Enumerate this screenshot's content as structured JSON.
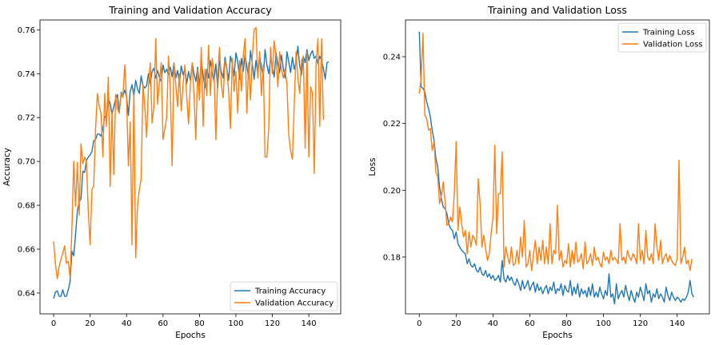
{
  "chart_data": [
    {
      "type": "line",
      "title": "Training and Validation Accuracy",
      "xlabel": "Epochs",
      "ylabel": "Accuracy",
      "xlim": [
        -7.5,
        157.5
      ],
      "ylim": [
        0.6305,
        0.7645
      ],
      "xticks": [
        0,
        20,
        40,
        60,
        80,
        100,
        120,
        140
      ],
      "xtick_labels": [
        "0",
        "20",
        "40",
        "60",
        "80",
        "100",
        "120",
        "140"
      ],
      "yticks": [
        0.64,
        0.66,
        0.68,
        0.7,
        0.72,
        0.74,
        0.76
      ],
      "ytick_labels": [
        "0.64",
        "0.66",
        "0.68",
        "0.70",
        "0.72",
        "0.74",
        "0.76"
      ],
      "legend_position": "lower-right",
      "grid": false,
      "series": [
        {
          "name": "Training Accuracy",
          "color": "#1f77b4",
          "values": [
            0.6375,
            0.6405,
            0.641,
            0.6385,
            0.6385,
            0.6415,
            0.6385,
            0.6385,
            0.6415,
            0.645,
            0.659,
            0.657,
            0.6665,
            0.6775,
            0.6815,
            0.683,
            0.6955,
            0.695,
            0.7005,
            0.702,
            0.703,
            0.7045,
            0.7095,
            0.71,
            0.7125,
            0.7125,
            0.7115,
            0.715,
            0.7205,
            0.72,
            0.7285,
            0.7265,
            0.7215,
            0.725,
            0.7285,
            0.7305,
            0.7225,
            0.7315,
            0.73,
            0.7325,
            0.7295,
            0.721,
            0.732,
            0.735,
            0.7295,
            0.737,
            0.733,
            0.731,
            0.739,
            0.7345,
            0.7335,
            0.7345,
            0.74,
            0.7355,
            0.741,
            0.7425,
            0.738,
            0.7415,
            0.7385,
            0.7365,
            0.744,
            0.7405,
            0.742,
            0.7395,
            0.743,
            0.7385,
            0.745,
            0.738,
            0.7415,
            0.736,
            0.7435,
            0.7395,
            0.7425,
            0.7355,
            0.741,
            0.737,
            0.7445,
            0.74,
            0.7365,
            0.743,
            0.7345,
            0.7455,
            0.7395,
            0.7335,
            0.742,
            0.738,
            0.746,
            0.7405,
            0.7365,
            0.7445,
            0.7335,
            0.746,
            0.741,
            0.738,
            0.7475,
            0.7425,
            0.737,
            0.748,
            0.7445,
            0.739,
            0.7495,
            0.7455,
            0.7375,
            0.747,
            0.741,
            0.7485,
            0.7435,
            0.738,
            0.7505,
            0.7445,
            0.7375,
            0.746,
            0.74,
            0.748,
            0.743,
            0.7385,
            0.751,
            0.744,
            0.74,
            0.747,
            0.743,
            0.7385,
            0.7495,
            0.7445,
            0.7405,
            0.7485,
            0.7425,
            0.738,
            0.75,
            0.7455,
            0.7405,
            0.7475,
            0.742,
            0.7455,
            0.7525,
            0.7435,
            0.7395,
            0.748,
            0.745,
            0.751,
            0.746,
            0.749,
            0.7505,
            0.747,
            0.748,
            0.7445,
            0.748,
            0.746,
            0.7425,
            0.7375,
            0.745,
            0.7455
          ]
        },
        {
          "name": "Validation Accuracy",
          "color": "#ff7f0e",
          "values": [
            0.6635,
            0.653,
            0.6465,
            0.652,
            0.6555,
            0.658,
            0.6615,
            0.6535,
            0.6545,
            0.647,
            0.669,
            0.7,
            0.6795,
            0.6995,
            0.6755,
            0.708,
            0.699,
            0.702,
            0.7,
            0.677,
            0.662,
            0.687,
            0.689,
            0.715,
            0.731,
            0.725,
            0.722,
            0.702,
            0.731,
            0.716,
            0.7385,
            0.6885,
            0.7225,
            0.694,
            0.7305,
            0.724,
            0.722,
            0.731,
            0.729,
            0.744,
            0.729,
            0.698,
            0.718,
            0.662,
            0.733,
            0.656,
            0.68,
            0.687,
            0.692,
            0.735,
            0.725,
            0.711,
            0.734,
            0.745,
            0.7175,
            0.725,
            0.756,
            0.726,
            0.736,
            0.745,
            0.71,
            0.715,
            0.72,
            0.748,
            0.733,
            0.698,
            0.745,
            0.735,
            0.725,
            0.74,
            0.723,
            0.735,
            0.744,
            0.73,
            0.717,
            0.735,
            0.745,
            0.73,
            0.71,
            0.742,
            0.728,
            0.752,
            0.716,
            0.742,
            0.73,
            0.753,
            0.73,
            0.747,
            0.741,
            0.71,
            0.738,
            0.752,
            0.735,
            0.729,
            0.746,
            0.742,
            0.732,
            0.715,
            0.747,
            0.732,
            0.741,
            0.722,
            0.746,
            0.732,
            0.748,
            0.756,
            0.722,
            0.745,
            0.728,
            0.748,
            0.76,
            0.761,
            0.738,
            0.75,
            0.73,
            0.744,
            0.702,
            0.702,
            0.715,
            0.752,
            0.74,
            0.755,
            0.748,
            0.734,
            0.75,
            0.742,
            0.738,
            0.742,
            0.735,
            0.712,
            0.705,
            0.701,
            0.726,
            0.75,
            0.738,
            0.731,
            0.746,
            0.748,
            0.706,
            0.75,
            0.702,
            0.734,
            0.731,
            0.6945,
            0.745,
            0.756,
            0.716,
            0.756,
            0.719
          ]
        }
      ]
    },
    {
      "type": "line",
      "title": "Training and Validation Loss",
      "xlabel": "Epochs",
      "ylabel": "Loss",
      "xlim": [
        -7.5,
        157.5
      ],
      "ylim": [
        0.163,
        0.251
      ],
      "xticks": [
        0,
        20,
        40,
        60,
        80,
        100,
        120,
        140
      ],
      "xtick_labels": [
        "0",
        "20",
        "40",
        "60",
        "80",
        "100",
        "120",
        "140"
      ],
      "yticks": [
        0.18,
        0.2,
        0.22,
        0.24
      ],
      "ytick_labels": [
        "0.18",
        "0.20",
        "0.22",
        "0.24"
      ],
      "legend_position": "upper-right",
      "grid": false,
      "series": [
        {
          "name": "Training Loss",
          "color": "#1f77b4",
          "values": [
            0.2475,
            0.231,
            0.2305,
            0.2295,
            0.2265,
            0.2245,
            0.222,
            0.218,
            0.215,
            0.2095,
            0.207,
            0.201,
            0.1975,
            0.195,
            0.1945,
            0.193,
            0.19,
            0.1885,
            0.188,
            0.1855,
            0.1875,
            0.184,
            0.183,
            0.182,
            0.1815,
            0.181,
            0.178,
            0.1795,
            0.1775,
            0.177,
            0.178,
            0.176,
            0.1755,
            0.177,
            0.175,
            0.1745,
            0.176,
            0.174,
            0.175,
            0.1735,
            0.1745,
            0.173,
            0.1735,
            0.1745,
            0.1725,
            0.179,
            0.1735,
            0.1725,
            0.1745,
            0.173,
            0.174,
            0.1725,
            0.1715,
            0.1735,
            0.172,
            0.17,
            0.173,
            0.1705,
            0.1715,
            0.173,
            0.17,
            0.1715,
            0.1725,
            0.1695,
            0.172,
            0.17,
            0.171,
            0.169,
            0.1705,
            0.1715,
            0.169,
            0.171,
            0.17,
            0.1725,
            0.169,
            0.1705,
            0.17,
            0.172,
            0.1685,
            0.1715,
            0.17,
            0.1695,
            0.173,
            0.1685,
            0.171,
            0.169,
            0.172,
            0.168,
            0.1705,
            0.169,
            0.17,
            0.168,
            0.171,
            0.1685,
            0.172,
            0.168,
            0.1695,
            0.168,
            0.171,
            0.169,
            0.1675,
            0.17,
            0.1685,
            0.175,
            0.168,
            0.169,
            0.166,
            0.172,
            0.1675,
            0.169,
            0.17,
            0.168,
            0.1715,
            0.169,
            0.167,
            0.17,
            0.168,
            0.1665,
            0.1695,
            0.168,
            0.171,
            0.169,
            0.167,
            0.172,
            0.169,
            0.17,
            0.1665,
            0.169,
            0.168,
            0.1705,
            0.1675,
            0.169,
            0.168,
            0.1665,
            0.171,
            0.1685,
            0.167,
            0.1695,
            0.168,
            0.167,
            0.168,
            0.1675,
            0.1665,
            0.1675,
            0.167,
            0.168,
            0.1695,
            0.173,
            0.169,
            0.168
          ]
        },
        {
          "name": "Validation Loss",
          "color": "#ff7f0e",
          "values": [
            0.229,
            0.2335,
            0.247,
            0.2225,
            0.2215,
            0.218,
            0.2185,
            0.212,
            0.2145,
            0.2055,
            0.204,
            0.196,
            0.1985,
            0.2025,
            0.1965,
            0.1895,
            0.19,
            0.192,
            0.1905,
            0.199,
            0.2145,
            0.188,
            0.195,
            0.19,
            0.186,
            0.188,
            0.181,
            0.1875,
            0.183,
            0.1865,
            0.1855,
            0.1835,
            0.2035,
            0.196,
            0.183,
            0.1865,
            0.1825,
            0.179,
            0.181,
            0.187,
            0.192,
            0.2135,
            0.187,
            0.199,
            0.199,
            0.2115,
            0.177,
            0.183,
            0.18,
            0.178,
            0.183,
            0.1775,
            0.178,
            0.182,
            0.178,
            0.186,
            0.18,
            0.191,
            0.177,
            0.178,
            0.182,
            0.176,
            0.181,
            0.185,
            0.178,
            0.183,
            0.179,
            0.185,
            0.178,
            0.183,
            0.178,
            0.19,
            0.178,
            0.182,
            0.181,
            0.1955,
            0.179,
            0.182,
            0.177,
            0.179,
            0.178,
            0.184,
            0.177,
            0.182,
            0.178,
            0.1845,
            0.1785,
            0.179,
            0.181,
            0.1765,
            0.1845,
            0.178,
            0.179,
            0.181,
            0.1775,
            0.183,
            0.179,
            0.18,
            0.178,
            0.177,
            0.1815,
            0.179,
            0.18,
            0.178,
            0.182,
            0.179,
            0.18,
            0.179,
            0.178,
            0.19,
            0.179,
            0.18,
            0.178,
            0.182,
            0.18,
            0.179,
            0.181,
            0.18,
            0.178,
            0.19,
            0.179,
            0.182,
            0.178,
            0.188,
            0.18,
            0.179,
            0.181,
            0.178,
            0.19,
            0.183,
            0.179,
            0.185,
            0.178,
            0.18,
            0.181,
            0.1785,
            0.1805,
            0.179,
            0.178,
            0.1775,
            0.1795,
            0.209,
            0.178,
            0.18,
            0.183,
            0.178,
            0.179,
            0.176,
            0.1795
          ]
        }
      ]
    }
  ]
}
